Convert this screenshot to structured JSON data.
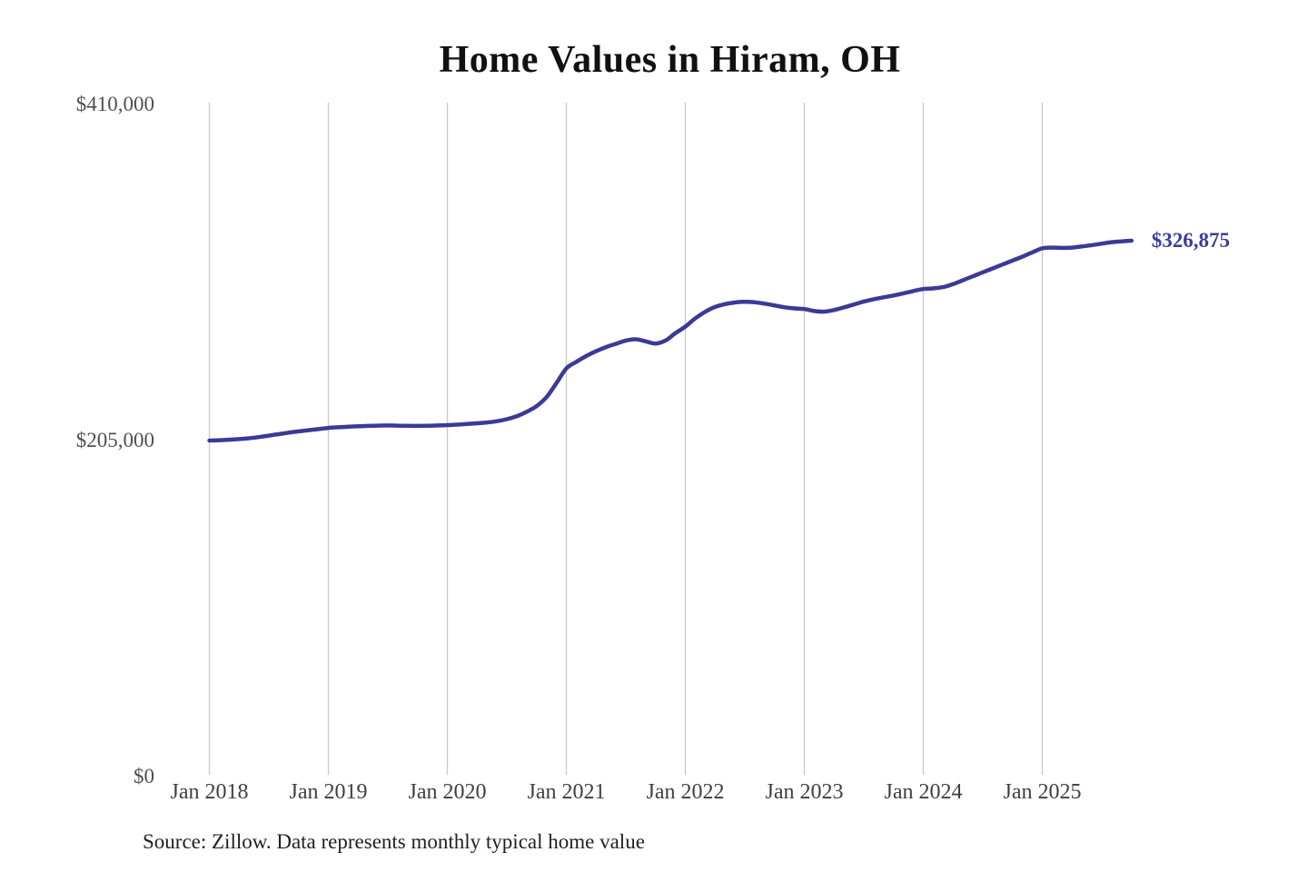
{
  "chart": {
    "title": "Home Values in Hiram, OH",
    "source_note": "Source: Zillow. Data represents monthly typical home value",
    "end_label": "$326,875",
    "colors": {
      "line": "#3b3a97",
      "end_label": "#3b3e99",
      "gridline": "#c9c9c9",
      "axis_text": "#4f4f4f",
      "title_text": "#111111"
    }
  },
  "chart_data": {
    "type": "line",
    "title": "Home Values in Hiram, OH",
    "xlabel": "",
    "ylabel": "",
    "ylim": [
      0,
      410000
    ],
    "grid": "vertical-yearly",
    "legend": false,
    "x_ticks": [
      "Jan 2018",
      "Jan 2019",
      "Jan 2020",
      "Jan 2021",
      "Jan 2022",
      "Jan 2023",
      "Jan 2024",
      "Jan 2025"
    ],
    "y_ticks": [
      {
        "label": "$0",
        "value": 0
      },
      {
        "label": "$205,000",
        "value": 205000
      },
      {
        "label": "$410,000",
        "value": 410000
      }
    ],
    "x_range": {
      "start": "Jan 2018",
      "end": "Oct 2025",
      "frequency": "monthly"
    },
    "annotation": {
      "text": "$326,875",
      "value": 326875,
      "position": "end-of-line"
    },
    "series": [
      {
        "name": "Monthly typical home value",
        "values": [
          205000,
          205200,
          205500,
          205900,
          206400,
          207100,
          208000,
          208900,
          209800,
          210600,
          211300,
          212000,
          212700,
          213100,
          213400,
          213700,
          213900,
          214100,
          214200,
          214100,
          214000,
          213900,
          214000,
          214200,
          214400,
          214700,
          215100,
          215500,
          216000,
          216800,
          218000,
          219800,
          222500,
          226000,
          231500,
          240000,
          249000,
          253000,
          256500,
          259500,
          262000,
          264000,
          266000,
          266800,
          265500,
          264200,
          266000,
          270500,
          274500,
          279500,
          283500,
          286500,
          288200,
          289200,
          289600,
          289300,
          288500,
          287400,
          286300,
          285600,
          285200,
          284000,
          283600,
          284600,
          286200,
          288000,
          289800,
          291200,
          292400,
          293500,
          294800,
          296200,
          297400,
          297800,
          298600,
          300400,
          302800,
          305200,
          307600,
          310000,
          312400,
          314800,
          317200,
          319800,
          322300,
          322700,
          322500,
          322700,
          323400,
          324200,
          325100,
          326000,
          326500,
          326875
        ]
      }
    ]
  }
}
